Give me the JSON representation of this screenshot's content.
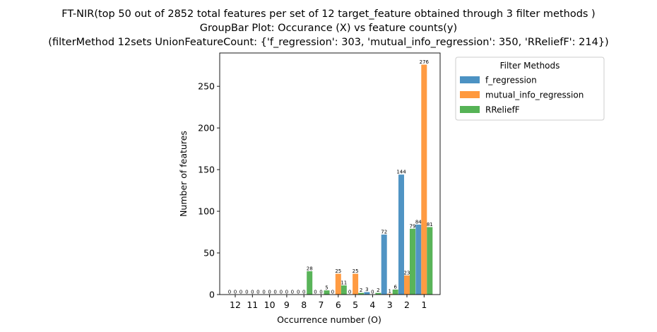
{
  "chart_data": {
    "type": "bar",
    "title_lines": [
      "FT-NIR(top 50 out of 2852 total features per set of 12 target_feature obtained through 3 filter methods )",
      "GroupBar Plot: Occurance (X) vs feature counts(y)",
      "(filterMethod 12sets UnionFeatureCount: {'f_regression': 303, 'mutual_info_regression': 350, 'RReliefF': 214})"
    ],
    "xlabel": "Occurrence number (O)",
    "ylabel": "Number of features",
    "categories": [
      "12",
      "11",
      "10",
      "9",
      "8",
      "7",
      "6",
      "5",
      "4",
      "3",
      "2",
      "1"
    ],
    "ylim": [
      0,
      290
    ],
    "yticks": [
      0,
      50,
      100,
      150,
      200,
      250
    ],
    "series": [
      {
        "name": "f_regression",
        "color": "#4c92c3",
        "values": [
          0,
          0,
          0,
          0,
          0,
          0,
          0,
          0,
          3,
          72,
          144,
          84
        ]
      },
      {
        "name": "mutual_info_regression",
        "color": "#ff993e",
        "values": [
          0,
          0,
          0,
          0,
          0,
          0,
          25,
          25,
          0,
          1,
          23,
          276
        ]
      },
      {
        "name": "RReliefF",
        "color": "#56b356",
        "values": [
          0,
          0,
          0,
          0,
          28,
          5,
          11,
          2,
          2,
          6,
          79,
          81
        ]
      }
    ],
    "legend": {
      "title": "Filter Methods",
      "placement": "outside upper right"
    }
  }
}
